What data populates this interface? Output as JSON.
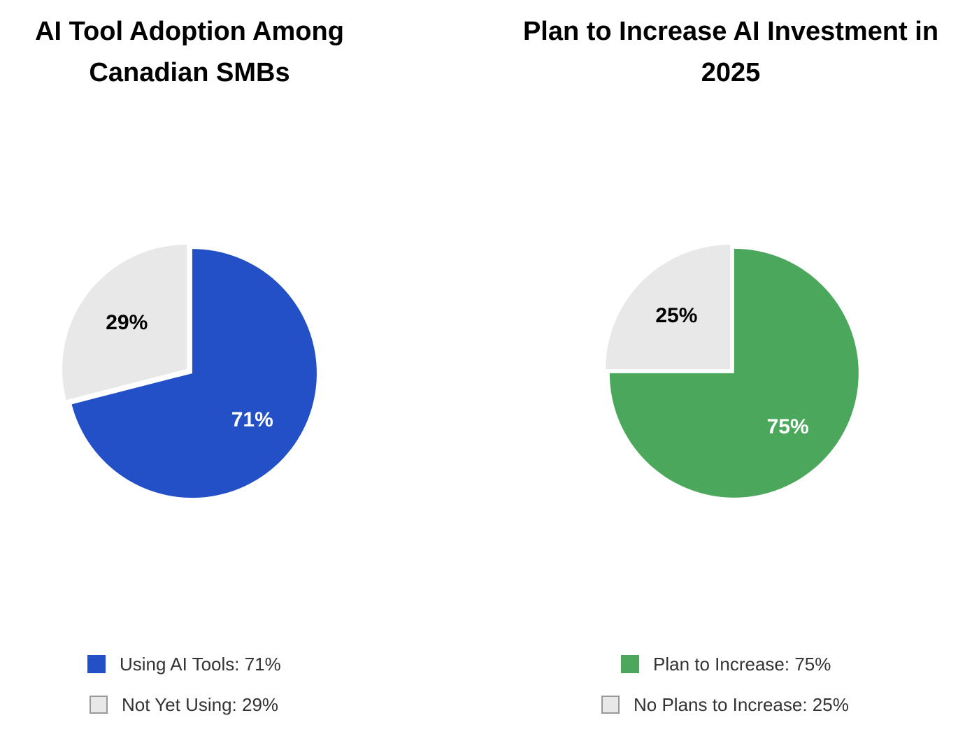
{
  "chart_data": [
    {
      "type": "pie",
      "title": "AI Tool Adoption Among Canadian SMBs",
      "slices": [
        {
          "label": "Using AI Tools",
          "value": 71,
          "display": "71%",
          "color": "#2350c6",
          "text_color": "#ffffff"
        },
        {
          "label": "Not Yet Using",
          "value": 29,
          "display": "29%",
          "color": "#e8e8e8",
          "text_color": "#000000"
        }
      ],
      "legend": [
        {
          "text": "Using AI Tools: 71%",
          "color": "#2350c6"
        },
        {
          "text": "Not Yet Using: 29%",
          "color": "#e8e8e8"
        }
      ],
      "legend_position": "bottom"
    },
    {
      "type": "pie",
      "title": "Plan to Increase AI Investment in 2025",
      "slices": [
        {
          "label": "Plan to Increase",
          "value": 75,
          "display": "75%",
          "color": "#4ba75c",
          "text_color": "#ffffff"
        },
        {
          "label": "No Plans to Increase",
          "value": 25,
          "display": "25%",
          "color": "#e8e8e8",
          "text_color": "#000000"
        }
      ],
      "legend": [
        {
          "text": "Plan to Increase: 75%",
          "color": "#4ba75c"
        },
        {
          "text": "No Plans to Increase: 25%",
          "color": "#e8e8e8"
        }
      ],
      "legend_position": "bottom"
    }
  ]
}
